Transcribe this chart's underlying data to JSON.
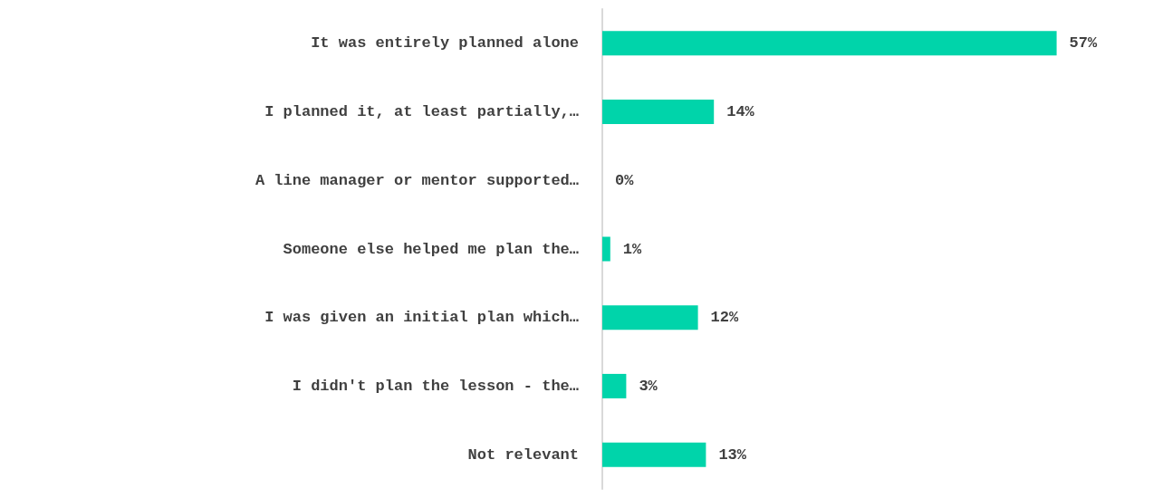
{
  "chart_data": {
    "type": "bar",
    "orientation": "horizontal",
    "categories": [
      "It was entirely planned alone",
      "I planned it, at least partially,…",
      "A line manager or mentor supported…",
      "Someone else helped me plan the…",
      "I was given an initial plan which…",
      "I didn't plan the lesson - the…",
      "Not relevant"
    ],
    "values": [
      57,
      14,
      0,
      1,
      12,
      3,
      13
    ],
    "value_labels": [
      "57%",
      "14%",
      "0%",
      "1%",
      "12%",
      "3%",
      "13%"
    ],
    "color": "#00d4aa"
  }
}
